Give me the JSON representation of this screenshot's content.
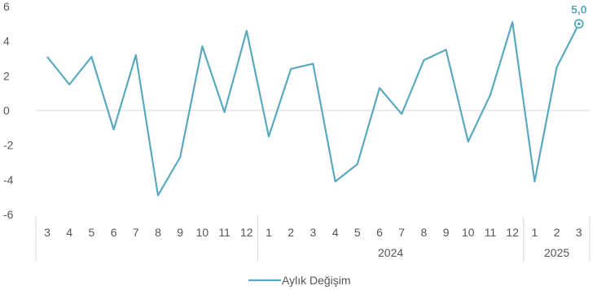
{
  "chart_data": {
    "type": "line",
    "title": "",
    "xlabel": "",
    "ylabel": "",
    "ylim": [
      -6,
      6
    ],
    "yticks": [
      "6",
      "4",
      "2",
      "0",
      "-2",
      "-4",
      "-6"
    ],
    "yticks_values": [
      6,
      4,
      2,
      0,
      -2,
      -4,
      -6
    ],
    "categories": [
      "3",
      "4",
      "5",
      "6",
      "7",
      "8",
      "9",
      "10",
      "11",
      "12",
      "1",
      "2",
      "3",
      "4",
      "5",
      "6",
      "7",
      "8",
      "9",
      "10",
      "11",
      "12",
      "1",
      "2",
      "3"
    ],
    "year_groups": [
      {
        "label": "",
        "count": 10
      },
      {
        "label": "2024",
        "count": 12
      },
      {
        "label": "2025",
        "count": 3
      }
    ],
    "series": [
      {
        "name": "Aylık Değişim",
        "color": "#5aa9be",
        "values": [
          3.1,
          1.5,
          3.1,
          -1.1,
          3.2,
          -4.9,
          -2.7,
          3.7,
          -0.1,
          4.6,
          -1.5,
          2.4,
          2.7,
          -4.1,
          -3.1,
          1.3,
          -0.2,
          2.9,
          3.5,
          -1.8,
          0.9,
          5.1,
          -4.1,
          2.5,
          5.0
        ]
      }
    ],
    "annotation": {
      "label": "5,0",
      "index": 24
    },
    "legend_position": "bottom",
    "grid": false
  }
}
